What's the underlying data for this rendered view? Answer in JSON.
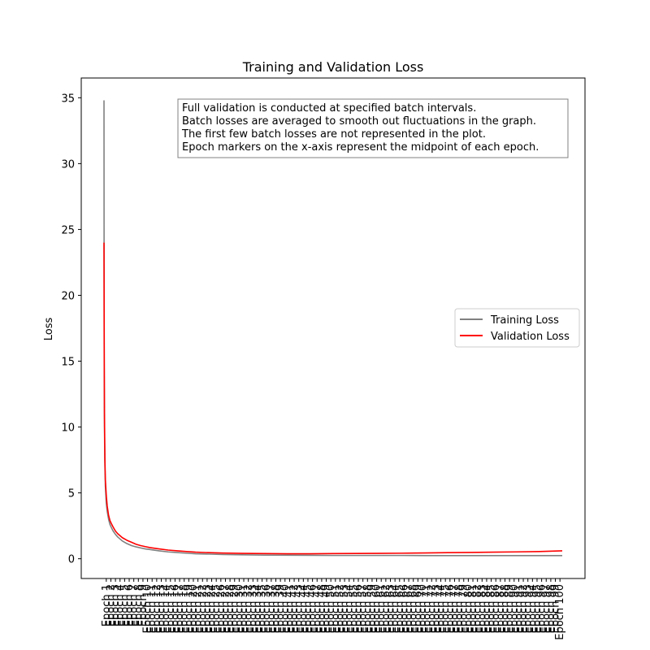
{
  "chart_data": {
    "type": "line",
    "title": "Training and Validation Loss",
    "xlabel": "",
    "ylabel": "Loss",
    "xlim": [
      0,
      100
    ],
    "ylim": [
      -1.5,
      36.5
    ],
    "y_ticks": [
      0,
      5,
      10,
      15,
      20,
      25,
      30,
      35
    ],
    "x_ticks": {
      "labels": [
        "Epoch 1",
        "Epoch 2",
        "Epoch 3",
        "Epoch 4",
        "Epoch 5",
        "Epoch 6",
        "Epoch 7",
        "Epoch 8",
        "Epoch 9",
        "Epoch 10",
        "Epoch 11",
        "Epoch 12",
        "Epoch 13",
        "Epoch 14",
        "Epoch 15",
        "Epoch 16",
        "Epoch 17",
        "Epoch 18",
        "Epoch 19",
        "Epoch 20",
        "Epoch 21",
        "Epoch 22",
        "Epoch 23",
        "Epoch 24",
        "Epoch 25",
        "Epoch 26",
        "Epoch 27",
        "Epoch 28",
        "Epoch 29",
        "Epoch 30",
        "Epoch 31",
        "Epoch 32",
        "Epoch 33",
        "Epoch 34",
        "Epoch 35",
        "Epoch 36",
        "Epoch 37",
        "Epoch 38",
        "Epoch 39",
        "Epoch 40",
        "Epoch 41",
        "Epoch 42",
        "Epoch 43",
        "Epoch 44",
        "Epoch 45",
        "Epoch 46",
        "Epoch 47",
        "Epoch 48",
        "Epoch 49",
        "Epoch 50",
        "Epoch 51",
        "Epoch 52",
        "Epoch 53",
        "Epoch 54",
        "Epoch 55",
        "Epoch 56",
        "Epoch 57",
        "Epoch 58",
        "Epoch 59",
        "Epoch 60",
        "Epoch 61",
        "Epoch 62",
        "Epoch 63",
        "Epoch 64",
        "Epoch 65",
        "Epoch 66",
        "Epoch 67",
        "Epoch 68",
        "Epoch 69",
        "Epoch 70",
        "Epoch 71",
        "Epoch 72",
        "Epoch 73",
        "Epoch 74",
        "Epoch 75",
        "Epoch 76",
        "Epoch 77",
        "Epoch 78",
        "Epoch 79",
        "Epoch 80",
        "Epoch 81",
        "Epoch 82",
        "Epoch 83",
        "Epoch 84",
        "Epoch 85",
        "Epoch 86",
        "Epoch 87",
        "Epoch 88",
        "Epoch 89",
        "Epoch 90",
        "Epoch 91",
        "Epoch 92",
        "Epoch 93",
        "Epoch 94",
        "Epoch 95",
        "Epoch 96",
        "Epoch 97",
        "Epoch 98",
        "Epoch 99",
        "Epoch 100"
      ]
    },
    "grid": false,
    "legend": {
      "placement": "center-right",
      "entries": [
        {
          "name": "Training Loss",
          "color": "#808080"
        },
        {
          "name": "Validation Loss",
          "color": "#ff0000"
        }
      ]
    },
    "annotation_lines": [
      "Full validation is conducted at specified batch intervals.",
      "Batch losses are averaged to smooth out fluctuations in the graph.",
      "The first few batch losses are not represented in the plot.",
      "Epoch markers on the x-axis represent the midpoint of each epoch."
    ],
    "series": [
      {
        "name": "Training Loss",
        "color": "#808080",
        "x": [
          0,
          0.02,
          0.05,
          0.1,
          0.2,
          0.3,
          0.5,
          0.7,
          1,
          1.3,
          1.7,
          2,
          2.5,
          3,
          4,
          5,
          6,
          7,
          8,
          9,
          10,
          12,
          14,
          16,
          18,
          20,
          23,
          26,
          30,
          35,
          40,
          45,
          50,
          55,
          60,
          65,
          70,
          75,
          80,
          85,
          90,
          95,
          100
        ],
        "values": [
          34.8,
          24,
          15,
          10,
          7,
          5.5,
          4.2,
          3.6,
          3.0,
          2.6,
          2.3,
          2.1,
          1.85,
          1.65,
          1.35,
          1.15,
          1.0,
          0.9,
          0.82,
          0.75,
          0.7,
          0.6,
          0.52,
          0.47,
          0.42,
          0.38,
          0.35,
          0.32,
          0.3,
          0.28,
          0.27,
          0.26,
          0.25,
          0.25,
          0.25,
          0.25,
          0.24,
          0.24,
          0.24,
          0.24,
          0.24,
          0.24,
          0.24
        ]
      },
      {
        "name": "Validation Loss",
        "color": "#ff0000",
        "x": [
          0,
          0.05,
          0.1,
          0.2,
          0.3,
          0.5,
          0.7,
          1,
          1.3,
          1.7,
          2,
          2.5,
          3,
          4,
          5,
          6,
          7,
          8,
          9,
          10,
          12,
          14,
          16,
          18,
          20,
          23,
          26,
          30,
          35,
          40,
          45,
          50,
          55,
          60,
          65,
          70,
          75,
          80,
          85,
          90,
          95,
          100
        ],
        "values": [
          24.0,
          16,
          11,
          7.5,
          6,
          4.8,
          4.0,
          3.3,
          2.9,
          2.6,
          2.4,
          2.1,
          1.9,
          1.6,
          1.4,
          1.25,
          1.1,
          1.0,
          0.92,
          0.85,
          0.75,
          0.66,
          0.6,
          0.55,
          0.5,
          0.46,
          0.43,
          0.41,
          0.39,
          0.38,
          0.38,
          0.39,
          0.4,
          0.41,
          0.42,
          0.44,
          0.46,
          0.48,
          0.5,
          0.52,
          0.55,
          0.6
        ]
      }
    ]
  }
}
